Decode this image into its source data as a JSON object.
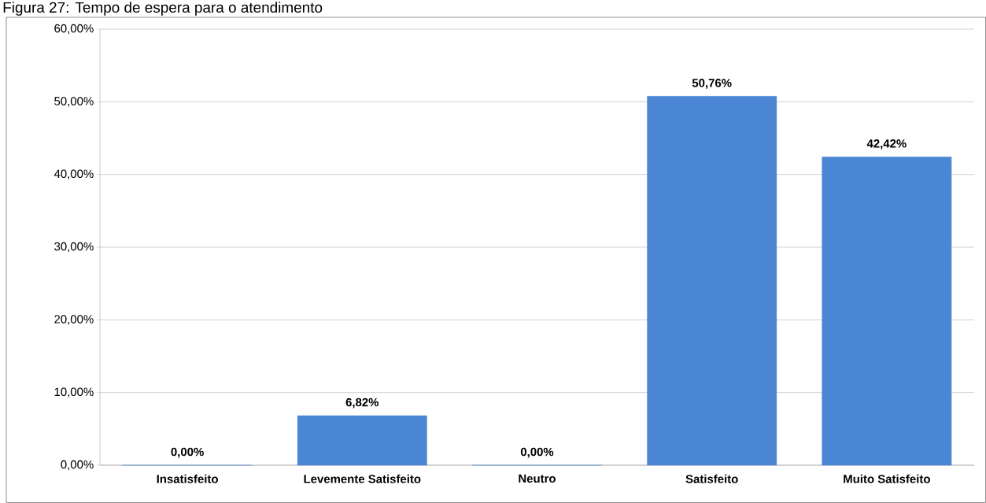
{
  "chart_data": {
    "type": "bar",
    "title": "Figura 27: Tempo de espera para o atendimento",
    "categories": [
      "Insatisfeito",
      "Levemente Satisfeito",
      "Neutro",
      "Satisfeito",
      "Muito Satisfeito"
    ],
    "values": [
      0,
      6.82,
      0,
      50.76,
      42.42
    ],
    "value_labels": [
      "0,00%",
      "6,82%",
      "0,00%",
      "50,76%",
      "42,42%"
    ],
    "color": "#4a86d4",
    "ylim": [
      0,
      60
    ],
    "yticks": [
      {
        "value": 0,
        "label": "0,00%"
      },
      {
        "value": 10,
        "label": "10,00%"
      },
      {
        "value": 20,
        "label": "20,00%"
      },
      {
        "value": 30,
        "label": "30,00%"
      },
      {
        "value": 40,
        "label": "40,00%"
      },
      {
        "value": 50,
        "label": "50,00%"
      },
      {
        "value": 60,
        "label": "60,00%"
      }
    ],
    "grid": "y"
  }
}
